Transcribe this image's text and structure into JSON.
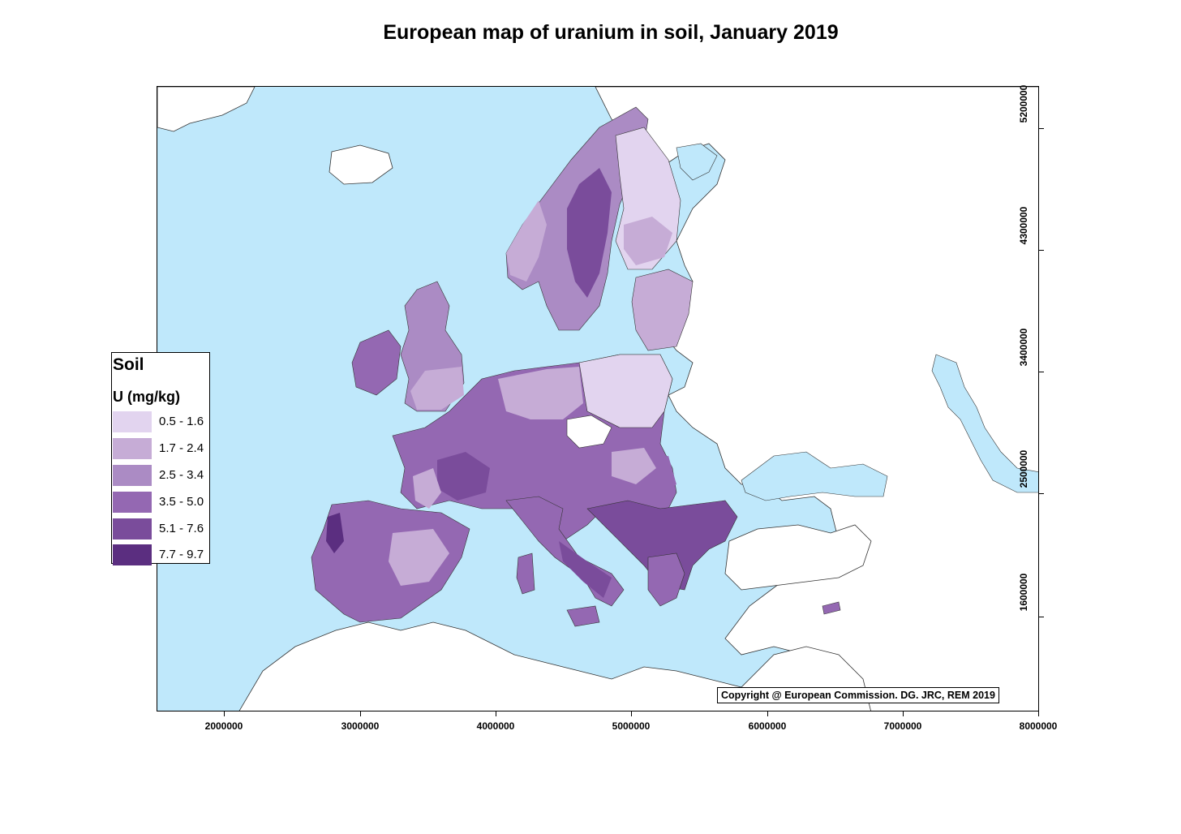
{
  "title": "European map of uranium in soil, January 2019",
  "legend": {
    "title": "Soil",
    "subtitle": "U (mg/kg)",
    "classes": [
      {
        "label": "0.5 - 1.6",
        "color": "#e2d4ef"
      },
      {
        "label": "1.7 - 2.4",
        "color": "#c6acd6"
      },
      {
        "label": "2.5 - 3.4",
        "color": "#ab8bc4"
      },
      {
        "label": "3.5 - 5.0",
        "color": "#9468b2"
      },
      {
        "label": "5.1 - 7.6",
        "color": "#7a4c9b"
      },
      {
        "label": "7.7 - 9.7",
        "color": "#5b2e80"
      }
    ]
  },
  "axes": {
    "x_ticks": [
      "2000000",
      "3000000",
      "4000000",
      "5000000",
      "6000000",
      "7000000",
      "8000000"
    ],
    "y_ticks": [
      "1600000",
      "2500000",
      "3400000",
      "4300000",
      "5200000"
    ]
  },
  "copyright": "Copyright @ European Commission. DG. JRC, REM 2019",
  "colors": {
    "sea": "#bfe8fb",
    "land_no_data": "#ffffff",
    "border": "#000000"
  }
}
